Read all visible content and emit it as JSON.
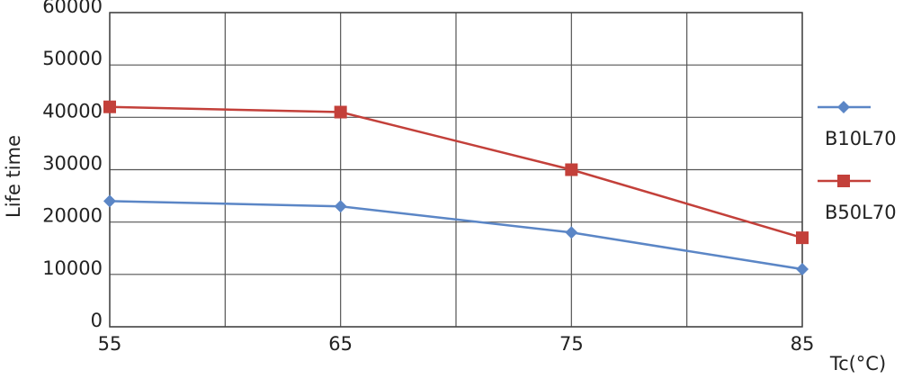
{
  "chart_data": {
    "type": "line",
    "x": [
      55,
      65,
      75,
      85
    ],
    "xlim": [
      55,
      85
    ],
    "xticks": [
      55,
      65,
      75,
      85
    ],
    "x_minor_ticks": [
      60,
      70,
      80
    ],
    "ylim": [
      0,
      60000
    ],
    "yticks": [
      0,
      10000,
      20000,
      30000,
      40000,
      50000,
      60000
    ],
    "xlabel": "Tc(°C)",
    "ylabel": "Life time",
    "grid": true,
    "legend": "right",
    "series": [
      {
        "name": "B10L70",
        "color": "#5b86c6",
        "marker": "diamond",
        "values": [
          24000,
          23000,
          18000,
          11000
        ]
      },
      {
        "name": "B50L70",
        "color": "#c3403a",
        "marker": "square",
        "values": [
          42000,
          41000,
          30000,
          17000
        ]
      }
    ]
  }
}
